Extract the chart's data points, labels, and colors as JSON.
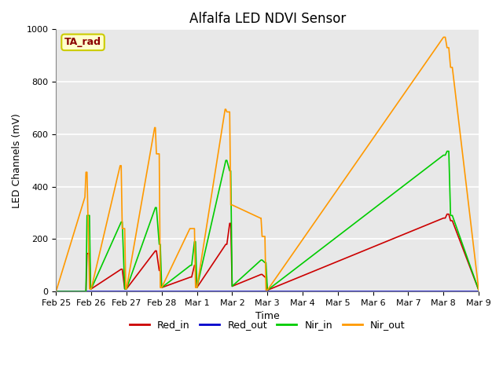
{
  "title": "Alfalfa LED NDVI Sensor",
  "xlabel": "Time",
  "ylabel": "LED Channels (mV)",
  "ylim": [
    0,
    1000
  ],
  "xlim": [
    0,
    12
  ],
  "background_color": "#e8e8e8",
  "annotation_text": "TA_rad",
  "annotation_color": "#8b0000",
  "annotation_bg": "#ffffcc",
  "annotation_edge": "#cccc00",
  "x_ticks": [
    "Feb 25",
    "Feb 26",
    "Feb 27",
    "Feb 28",
    "Mar 1",
    "Mar 2",
    "Mar 3",
    "Mar 4",
    "Mar 5",
    "Mar 6",
    "Mar 7",
    "Mar 8",
    "Mar 9"
  ],
  "x_tick_pos": [
    0,
    1,
    2,
    3,
    4,
    5,
    6,
    7,
    8,
    9,
    10,
    11,
    12
  ],
  "series": {
    "Red_in": {
      "color": "#cc0000",
      "lw": 1.2,
      "x": [
        0.0,
        0.85,
        0.88,
        0.95,
        0.98,
        1.0,
        1.85,
        1.88,
        1.95,
        1.98,
        2.0,
        2.82,
        2.85,
        2.93,
        2.96,
        3.0,
        3.82,
        3.85,
        3.93,
        3.96,
        4.0,
        4.82,
        4.85,
        4.93,
        4.96,
        5.0,
        5.82,
        5.85,
        5.93,
        5.96,
        6.0,
        6.0,
        11.0,
        11.05,
        11.1,
        11.15,
        11.2,
        11.25,
        12.0
      ],
      "y": [
        0,
        0,
        145,
        145,
        10,
        10,
        85,
        85,
        10,
        10,
        10,
        155,
        155,
        80,
        80,
        15,
        55,
        55,
        100,
        100,
        15,
        180,
        180,
        260,
        260,
        20,
        65,
        65,
        55,
        55,
        5,
        5,
        280,
        280,
        295,
        295,
        270,
        270,
        5
      ]
    },
    "Red_out": {
      "color": "#0000cc",
      "lw": 1.2,
      "x": [
        0.0,
        12.0
      ],
      "y": [
        0,
        0
      ]
    },
    "Nir_in": {
      "color": "#00cc00",
      "lw": 1.2,
      "x": [
        0.0,
        0.85,
        0.88,
        0.95,
        0.98,
        1.0,
        1.85,
        1.88,
        1.95,
        1.98,
        2.0,
        2.82,
        2.85,
        2.93,
        2.96,
        3.0,
        3.82,
        3.85,
        3.93,
        3.96,
        4.0,
        4.82,
        4.85,
        4.93,
        4.96,
        5.0,
        5.82,
        5.85,
        5.93,
        5.96,
        6.0,
        6.0,
        11.0,
        11.05,
        11.1,
        11.15,
        11.2,
        11.25,
        12.0
      ],
      "y": [
        0,
        0,
        290,
        290,
        10,
        10,
        265,
        265,
        10,
        10,
        10,
        320,
        320,
        180,
        180,
        15,
        100,
        100,
        190,
        190,
        15,
        500,
        500,
        460,
        460,
        20,
        120,
        120,
        110,
        110,
        5,
        5,
        520,
        520,
        535,
        535,
        290,
        290,
        5
      ]
    },
    "Nir_out": {
      "color": "#ff9900",
      "lw": 1.2,
      "x": [
        0.0,
        0.82,
        0.85,
        0.88,
        0.95,
        0.98,
        1.0,
        1.82,
        1.85,
        1.88,
        1.95,
        1.98,
        2.0,
        2.8,
        2.82,
        2.85,
        2.93,
        2.96,
        3.0,
        3.8,
        3.82,
        3.85,
        3.93,
        3.96,
        4.0,
        4.8,
        4.82,
        4.85,
        4.93,
        4.96,
        5.0,
        5.8,
        5.82,
        5.85,
        5.93,
        5.96,
        6.0,
        6.0,
        11.0,
        11.05,
        11.1,
        11.15,
        11.2,
        11.25,
        12.0
      ],
      "y": [
        0,
        360,
        455,
        455,
        10,
        10,
        10,
        480,
        480,
        240,
        240,
        10,
        10,
        625,
        625,
        525,
        525,
        15,
        15,
        240,
        240,
        240,
        240,
        15,
        15,
        695,
        695,
        685,
        685,
        330,
        330,
        280,
        280,
        210,
        210,
        5,
        5,
        5,
        970,
        970,
        930,
        930,
        855,
        855,
        5
      ]
    }
  }
}
